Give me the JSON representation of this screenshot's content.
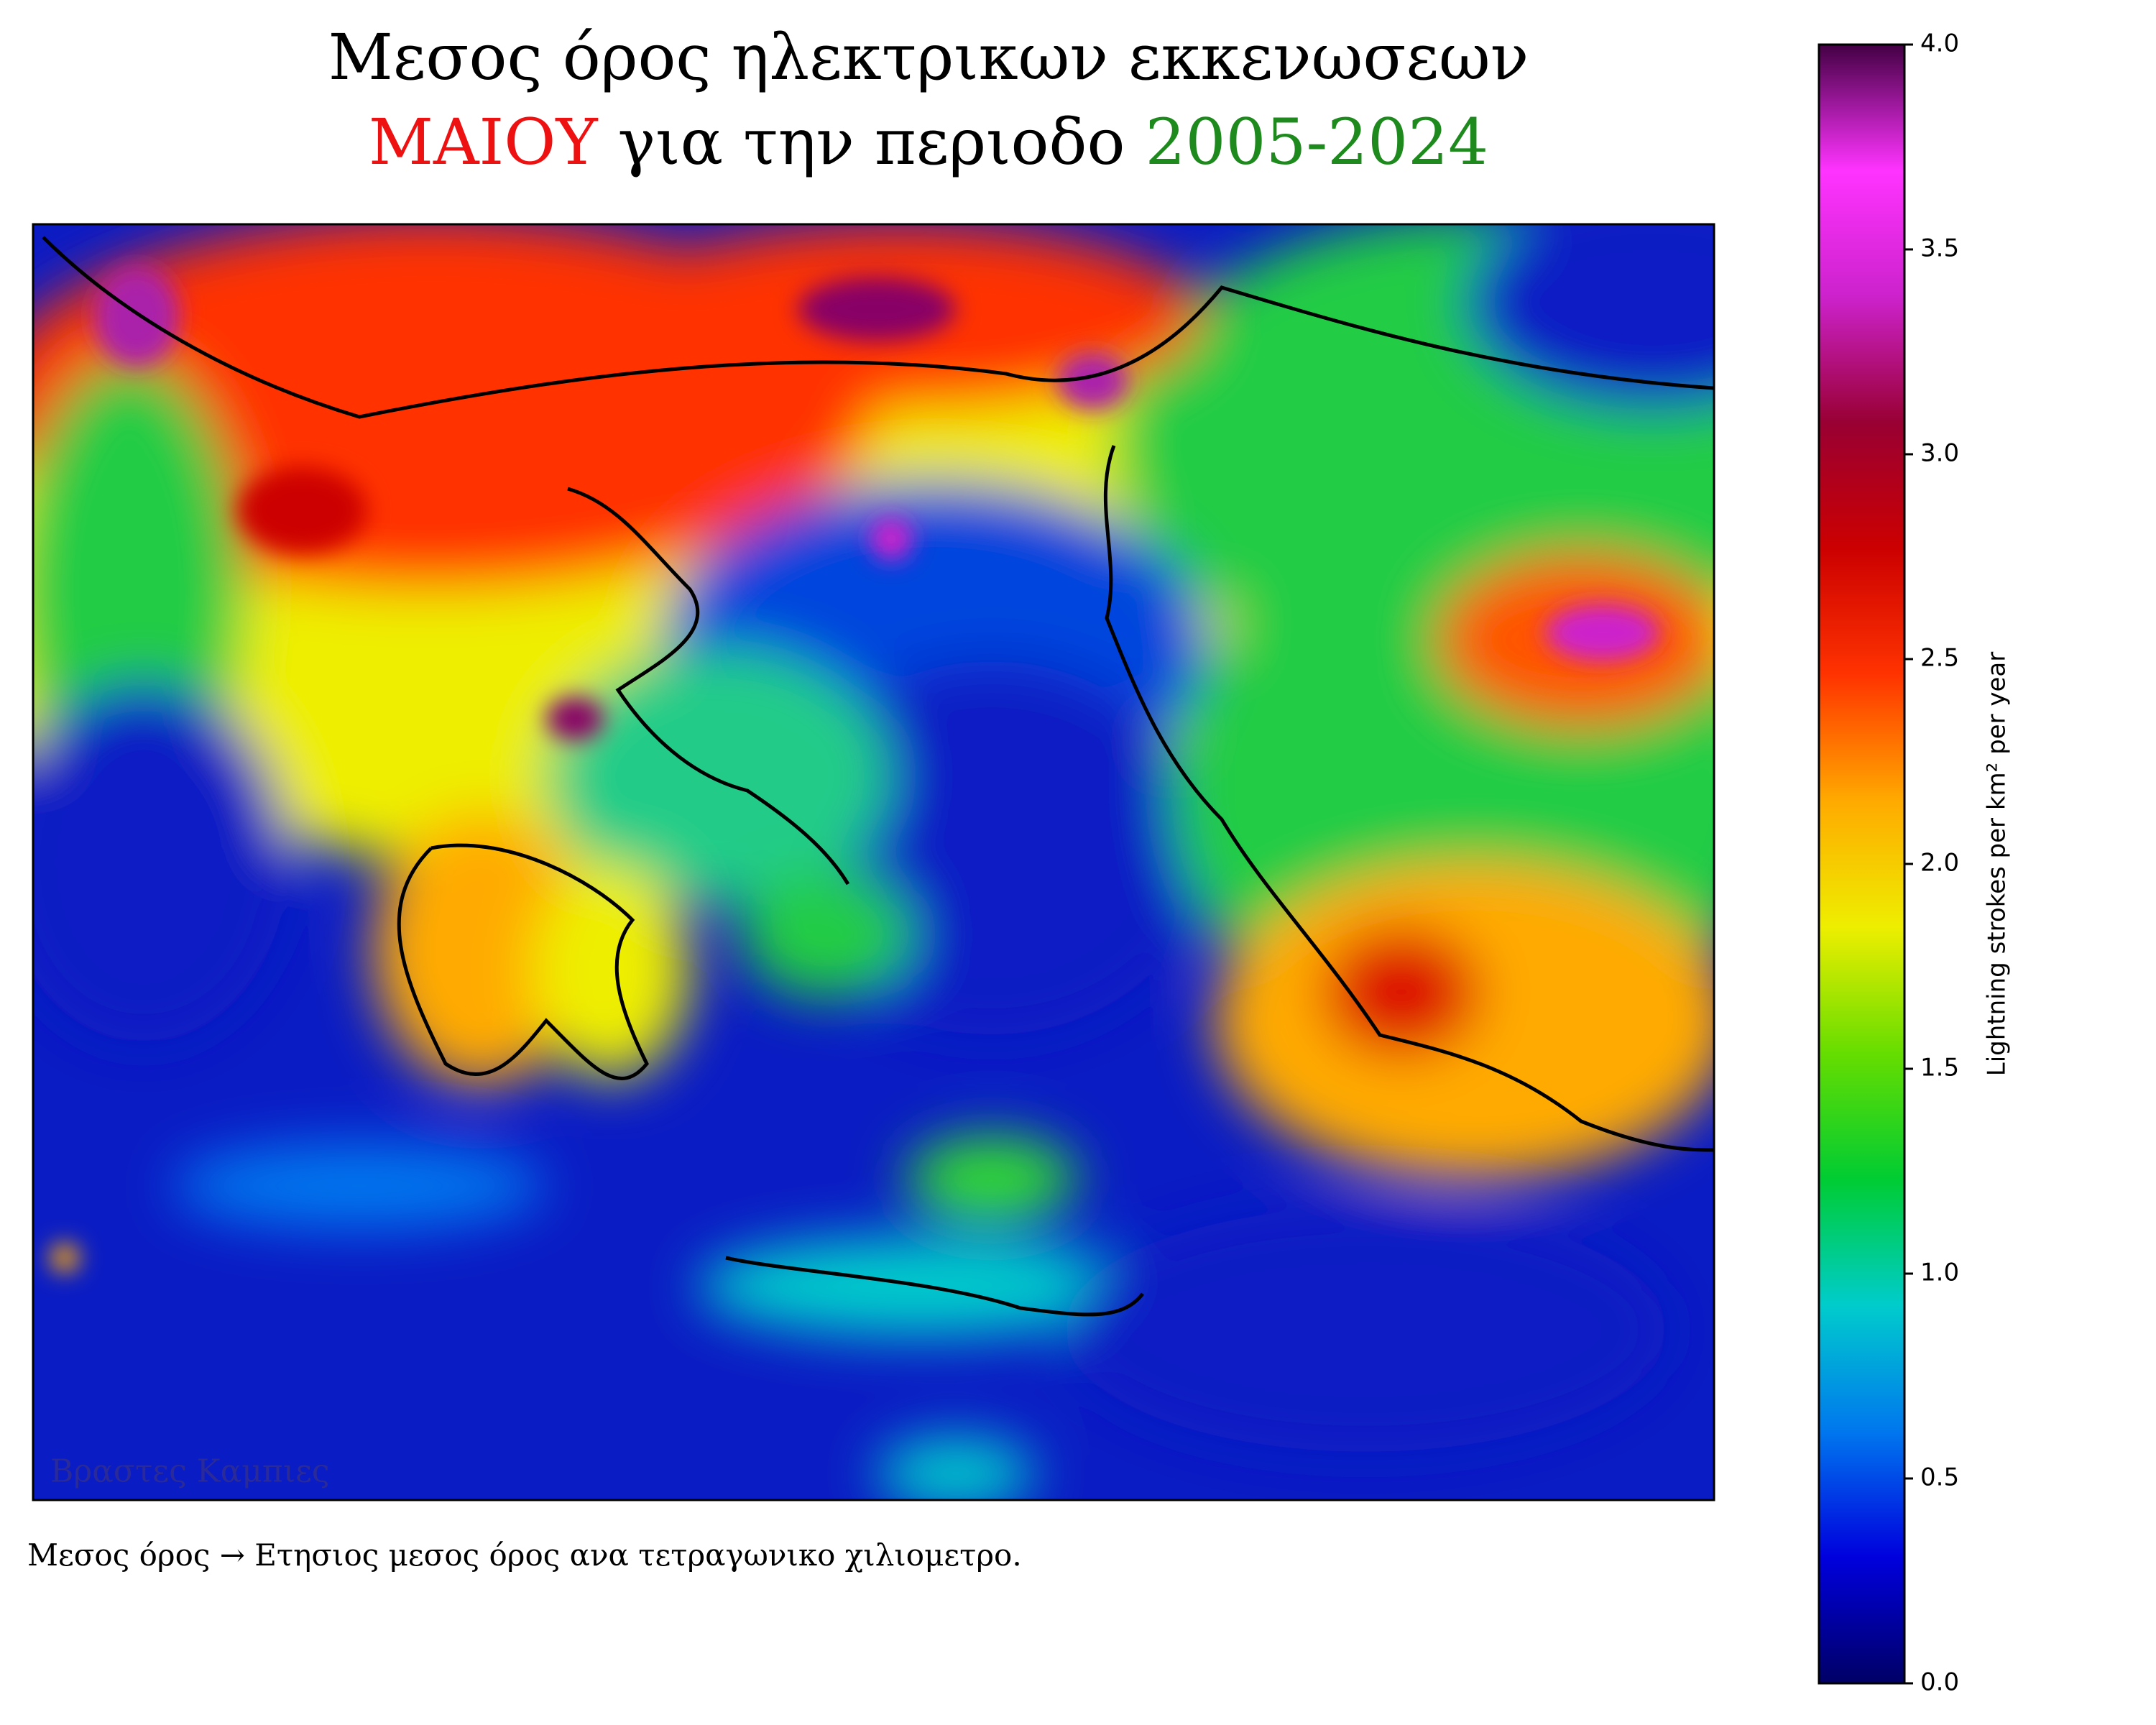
{
  "title": {
    "line1": "Μεσος όρος ηλεκτρικων εκκενωσεων",
    "month": "ΜΑΙΟΥ",
    "middle": "για την περιοδο",
    "period": "2005-2024",
    "month_color": "#ee1111",
    "period_color": "#1e8a1e"
  },
  "watermark": "Βραστες Καμπιες",
  "footnote": "Μεσος όρος → Ετησιος μεσος όρος ανα τετραγωνικο χιλιομετρο.",
  "colorbar": {
    "label": "Lightning strokes per km² per year",
    "lim": [
      0,
      4
    ],
    "ticks": [
      {
        "value": 0,
        "label": "0.0"
      },
      {
        "value": 0.5,
        "label": "0.5"
      },
      {
        "value": 1,
        "label": "1.0"
      },
      {
        "value": 1.5,
        "label": "1.5"
      },
      {
        "value": 2,
        "label": "2.0"
      },
      {
        "value": 2.5,
        "label": "2.5"
      },
      {
        "value": 3,
        "label": "3.0"
      },
      {
        "value": 3.5,
        "label": "3.5"
      },
      {
        "value": 4,
        "label": "4.0"
      }
    ],
    "colors": [
      "#000066",
      "#0000dd",
      "#0077ee",
      "#00cccc",
      "#00cc33",
      "#66dd00",
      "#eeee00",
      "#ffaa00",
      "#ff3300",
      "#cc0000",
      "#990033",
      "#cc22cc",
      "#ff33ff",
      "#440044"
    ]
  }
}
